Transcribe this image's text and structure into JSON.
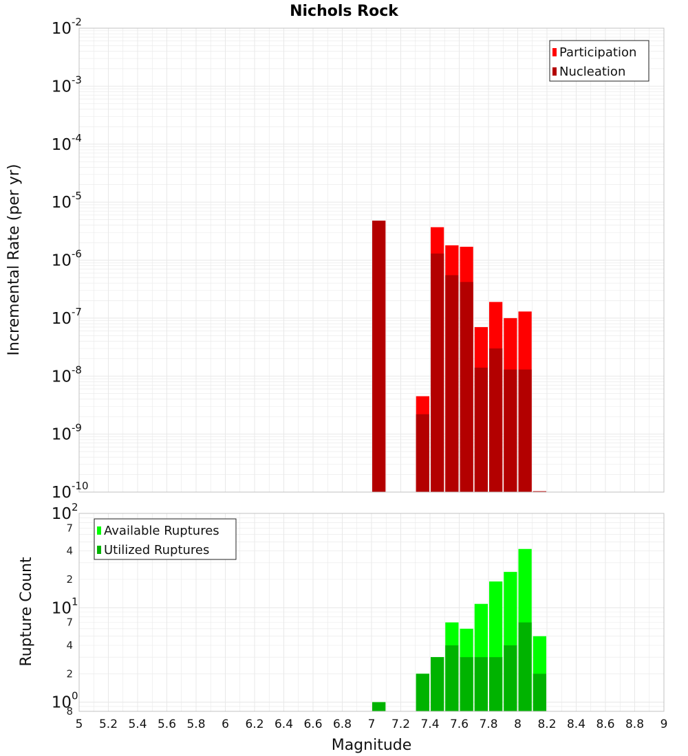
{
  "colors": {
    "participation": "#ff0000",
    "nucleation": "#b30000",
    "available": "#00ff00",
    "utilized": "#00b300",
    "grid": "#e8e8e8",
    "plot_border": "#c0c0c0"
  },
  "chart_data": [
    {
      "id": "rate",
      "type": "bar",
      "title": "Nichols Rock",
      "xlabel": "",
      "ylabel": "Incremental Rate (per yr)",
      "yscale": "log",
      "xlim": [
        5,
        9
      ],
      "ylim": [
        1e-10,
        0.01
      ],
      "bin_width": 0.1,
      "y_ticks": [
        {
          "value": 1e-10,
          "base": "10",
          "exp": "-10"
        },
        {
          "value": 1e-09,
          "base": "10",
          "exp": "-9"
        },
        {
          "value": 1e-08,
          "base": "10",
          "exp": "-8"
        },
        {
          "value": 1e-07,
          "base": "10",
          "exp": "-7"
        },
        {
          "value": 1e-06,
          "base": "10",
          "exp": "-6"
        },
        {
          "value": 1e-05,
          "base": "10",
          "exp": "-5"
        },
        {
          "value": 0.0001,
          "base": "10",
          "exp": "-4"
        },
        {
          "value": 0.001,
          "base": "10",
          "exp": "-3"
        },
        {
          "value": 0.01,
          "base": "10",
          "exp": "-2"
        }
      ],
      "legend": {
        "position": "top-right",
        "entries": [
          {
            "label": "Participation",
            "color": "#ff0000"
          },
          {
            "label": "Nucleation",
            "color": "#b30000"
          }
        ]
      },
      "x": [
        7.05,
        7.35,
        7.45,
        7.55,
        7.65,
        7.75,
        7.85,
        7.95,
        8.05,
        8.15
      ],
      "series": [
        {
          "name": "Participation",
          "color": "#ff0000",
          "values": [
            4.8e-06,
            4.5e-09,
            3.7e-06,
            1.8e-06,
            1.7e-06,
            7e-08,
            1.9e-07,
            1e-07,
            1.3e-07,
            1e-10
          ]
        },
        {
          "name": "Nucleation",
          "color": "#b30000",
          "values": [
            4.8e-06,
            2.2e-09,
            1.3e-06,
            5.5e-07,
            4.2e-07,
            1.4e-08,
            3e-08,
            1.3e-08,
            1.3e-08,
            1e-10
          ]
        }
      ]
    },
    {
      "id": "count",
      "type": "bar",
      "title": "",
      "xlabel": "Magnitude",
      "ylabel": "Rupture Count",
      "yscale": "log",
      "xlim": [
        5,
        9
      ],
      "ylim": [
        0.8,
        100
      ],
      "bin_width": 0.1,
      "x_ticks": [
        "5",
        "5.2",
        "5.4",
        "5.6",
        "5.8",
        "6",
        "6.2",
        "6.4",
        "6.6",
        "6.8",
        "7",
        "7.2",
        "7.4",
        "7.6",
        "7.8",
        "8",
        "8.2",
        "8.4",
        "8.6",
        "8.8",
        "9"
      ],
      "y_ticks": [
        {
          "value": 1,
          "base": "10",
          "exp": "0"
        },
        {
          "value": 10,
          "base": "10",
          "exp": "1"
        },
        {
          "value": 100,
          "base": "10",
          "exp": "2"
        }
      ],
      "y_minor_labels": [
        {
          "value": 0.8,
          "label": "8"
        },
        {
          "value": 2,
          "label": "2"
        },
        {
          "value": 4,
          "label": "4"
        },
        {
          "value": 7,
          "label": "7"
        },
        {
          "value": 20,
          "label": "2"
        },
        {
          "value": 40,
          "label": "4"
        },
        {
          "value": 70,
          "label": "7"
        }
      ],
      "legend": {
        "position": "top-left",
        "entries": [
          {
            "label": "Available Ruptures",
            "color": "#00ff00"
          },
          {
            "label": "Utilized Ruptures",
            "color": "#00b300"
          }
        ]
      },
      "x": [
        7.05,
        7.35,
        7.45,
        7.55,
        7.65,
        7.75,
        7.85,
        7.95,
        8.05,
        8.15
      ],
      "series": [
        {
          "name": "Available Ruptures",
          "color": "#00ff00",
          "values": [
            1,
            2,
            3,
            7,
            6,
            11,
            19,
            24,
            42,
            5
          ]
        },
        {
          "name": "Utilized Ruptures",
          "color": "#00b300",
          "values": [
            1,
            2,
            3,
            4,
            3,
            3,
            3,
            4,
            7,
            2
          ]
        }
      ]
    }
  ]
}
